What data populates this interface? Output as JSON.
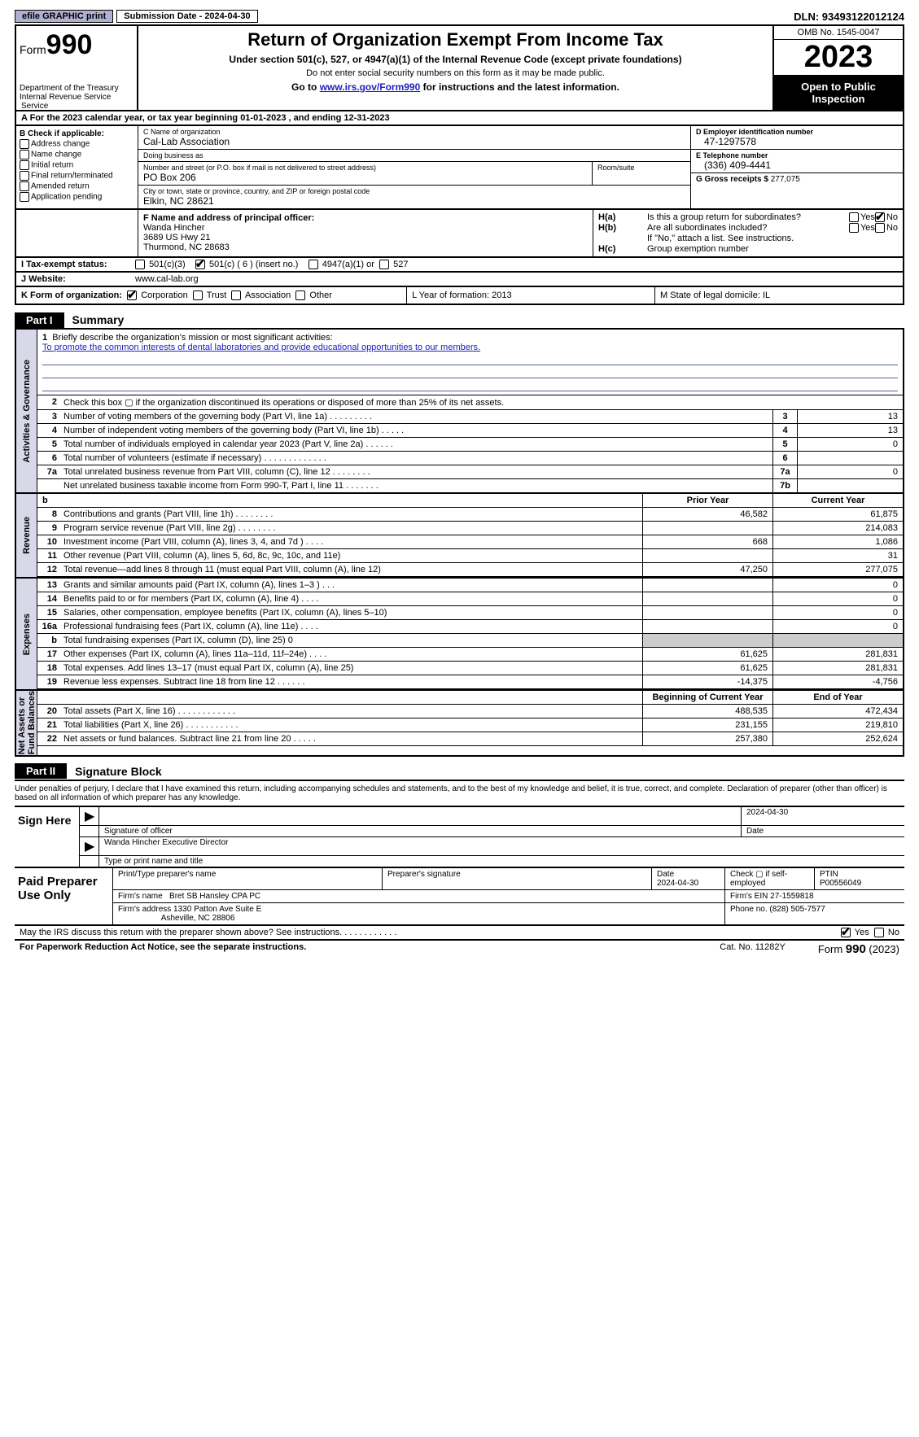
{
  "topbar": {
    "efile": "efile GRAPHIC print",
    "sub_label": "Submission Date - 2024-04-30",
    "dln": "DLN: 93493122012124"
  },
  "header": {
    "form_word": "Form",
    "form_num": "990",
    "title": "Return of Organization Exempt From Income Tax",
    "subtitle": "Under section 501(c), 527, or 4947(a)(1) of the Internal Revenue Code (except private foundations)",
    "note": "Do not enter social security numbers on this form as it may be made public.",
    "goto_pre": "Go to ",
    "goto_link": "www.irs.gov/Form990",
    "goto_post": " for instructions and the latest information.",
    "dept": "Department of the Treasury\nInternal Revenue Service",
    "omb": "OMB No. 1545-0047",
    "year": "2023",
    "open": "Open to Public Inspection"
  },
  "period": {
    "service": "Service",
    "text": "A For the 2023 calendar year, or tax year beginning 01-01-2023   , and ending 12-31-2023"
  },
  "boxB": {
    "hdr": "B Check if applicable:",
    "opts": [
      "Address change",
      "Name change",
      "Initial return",
      "Final return/terminated",
      "Amended return",
      "Application pending"
    ]
  },
  "boxC": {
    "name_lbl": "C Name of organization",
    "name": "Cal-Lab Association",
    "dba_lbl": "Doing business as",
    "dba": "",
    "street_lbl": "Number and street (or P.O. box if mail is not delivered to street address)",
    "street": "PO Box 206",
    "room_lbl": "Room/suite",
    "city_lbl": "City or town, state or province, country, and ZIP or foreign postal code",
    "city": "Elkin, NC  28621"
  },
  "boxD": {
    "lbl": "D Employer identification number",
    "val": "47-1297578"
  },
  "boxE": {
    "lbl": "E Telephone number",
    "val": "(336) 409-4441"
  },
  "boxG": {
    "lbl": "G Gross receipts $",
    "val": "277,075"
  },
  "boxF": {
    "lbl": "F  Name and address of principal officer:",
    "name": "Wanda Hincher",
    "addr1": "3689 US Hwy 21",
    "addr2": "Thurmond, NC  28683"
  },
  "boxH": {
    "a_lbl": "H(a)",
    "a_txt": "Is this a group return for subordinates?",
    "a_no_checked": true,
    "b_lbl": "H(b)",
    "b_txt": "Are all subordinates included?",
    "b_note": "If \"No,\" attach a list. See instructions.",
    "c_lbl": "H(c)",
    "c_txt": "Group exemption number"
  },
  "rowI": {
    "lbl": "I   Tax-exempt status:",
    "o1": "501(c)(3)",
    "o2": "501(c) ( 6 ) (insert no.)",
    "o2_checked": true,
    "o3": "4947(a)(1) or",
    "o4": "527"
  },
  "rowJ": {
    "lbl": "J   Website:",
    "val": "www.cal-lab.org"
  },
  "rowK": {
    "lbl": "K Form of organization:",
    "opts": [
      "Corporation",
      "Trust",
      "Association",
      "Other"
    ],
    "checked": 0,
    "L": "L Year of formation: 2013",
    "M": "M State of legal domicile: IL"
  },
  "part1": {
    "tab": "Part I",
    "title": "Summary"
  },
  "vtabs": {
    "gov": "Activities & Governance",
    "rev": "Revenue",
    "exp": "Expenses",
    "net": "Net Assets or\nFund Balances"
  },
  "mission": {
    "q": "Briefly describe the organization's mission or most significant activities:",
    "a": "To promote the common interests of dental laboratories and provide educational opportunities to our members."
  },
  "gov_lines": [
    {
      "n": "2",
      "d": "Check this box ▢ if the organization discontinued its operations or disposed of more than 25% of its net assets.",
      "box": "",
      "v": ""
    },
    {
      "n": "3",
      "d": "Number of voting members of the governing body (Part VI, line 1a)   .   .   .   .   .   .   .   .   .",
      "box": "3",
      "v": "13"
    },
    {
      "n": "4",
      "d": "Number of independent voting members of the governing body (Part VI, line 1b)   .   .   .   .   .",
      "box": "4",
      "v": "13"
    },
    {
      "n": "5",
      "d": "Total number of individuals employed in calendar year 2023 (Part V, line 2a)   .   .   .   .   .   .",
      "box": "5",
      "v": "0"
    },
    {
      "n": "6",
      "d": "Total number of volunteers (estimate if necessary)   .   .   .   .   .   .   .   .   .   .   .   .   .",
      "box": "6",
      "v": ""
    },
    {
      "n": "7a",
      "d": "Total unrelated business revenue from Part VIII, column (C), line 12   .   .   .   .   .   .   .   .",
      "box": "7a",
      "v": "0"
    },
    {
      "n": "",
      "d": "Net unrelated business taxable income from Form 990-T, Part I, line 11   .   .   .   .   .   .   .",
      "box": "7b",
      "v": ""
    }
  ],
  "col_hdrs": {
    "prior": "Prior Year",
    "curr": "Current Year",
    "begin": "Beginning of Current Year",
    "end": "End of Year"
  },
  "rev_lines": [
    {
      "n": "8",
      "d": "Contributions and grants (Part VIII, line 1h)   .   .   .   .   .   .   .   .",
      "p": "46,582",
      "c": "61,875"
    },
    {
      "n": "9",
      "d": "Program service revenue (Part VIII, line 2g)   .   .   .   .   .   .   .   .",
      "p": "",
      "c": "214,083"
    },
    {
      "n": "10",
      "d": "Investment income (Part VIII, column (A), lines 3, 4, and 7d )   .   .   .   .",
      "p": "668",
      "c": "1,086"
    },
    {
      "n": "11",
      "d": "Other revenue (Part VIII, column (A), lines 5, 6d, 8c, 9c, 10c, and 11e)",
      "p": "",
      "c": "31"
    },
    {
      "n": "12",
      "d": "Total revenue—add lines 8 through 11 (must equal Part VIII, column (A), line 12)",
      "p": "47,250",
      "c": "277,075"
    }
  ],
  "exp_lines": [
    {
      "n": "13",
      "d": "Grants and similar amounts paid (Part IX, column (A), lines 1–3 )   .   .   .",
      "p": "",
      "c": "0"
    },
    {
      "n": "14",
      "d": "Benefits paid to or for members (Part IX, column (A), line 4)   .   .   .   .",
      "p": "",
      "c": "0"
    },
    {
      "n": "15",
      "d": "Salaries, other compensation, employee benefits (Part IX, column (A), lines 5–10)",
      "p": "",
      "c": "0"
    },
    {
      "n": "16a",
      "d": "Professional fundraising fees (Part IX, column (A), line 11e)   .   .   .   .",
      "p": "",
      "c": "0"
    },
    {
      "n": "b",
      "d": "Total fundraising expenses (Part IX, column (D), line 25) 0",
      "p": "grey",
      "c": "grey"
    },
    {
      "n": "17",
      "d": "Other expenses (Part IX, column (A), lines 11a–11d, 11f–24e)   .   .   .   .",
      "p": "61,625",
      "c": "281,831"
    },
    {
      "n": "18",
      "d": "Total expenses. Add lines 13–17 (must equal Part IX, column (A), line 25)",
      "p": "61,625",
      "c": "281,831"
    },
    {
      "n": "19",
      "d": "Revenue less expenses. Subtract line 18 from line 12   .   .   .   .   .   .",
      "p": "-14,375",
      "c": "-4,756"
    }
  ],
  "net_lines": [
    {
      "n": "20",
      "d": "Total assets (Part X, line 16)   .   .   .   .   .   .   .   .   .   .   .   .",
      "p": "488,535",
      "c": "472,434"
    },
    {
      "n": "21",
      "d": "Total liabilities (Part X, line 26)   .   .   .   .   .   .   .   .   .   .   .",
      "p": "231,155",
      "c": "219,810"
    },
    {
      "n": "22",
      "d": "Net assets or fund balances. Subtract line 21 from line 20   .   .   .   .   .",
      "p": "257,380",
      "c": "252,624"
    }
  ],
  "part2": {
    "tab": "Part II",
    "title": "Signature Block"
  },
  "sig": {
    "decl": "Under penalties of perjury, I declare that I have examined this return, including accompanying schedules and statements, and to the best of my knowledge and belief, it is true, correct, and complete. Declaration of preparer (other than officer) is based on all information of which preparer has any knowledge.",
    "here": "Sign Here",
    "sig_lbl": "Signature of officer",
    "date_lbl": "Date",
    "date": "2024-04-30",
    "name": "Wanda Hincher Executive Director",
    "type_lbl": "Type or print name and title"
  },
  "prep": {
    "hdr": "Paid Preparer Use Only",
    "c1": "Print/Type preparer's name",
    "c2": "Preparer's signature",
    "c3": "Date",
    "c3v": "2024-04-30",
    "c4": "Check ▢ if self-employed",
    "c5": "PTIN",
    "c5v": "P00556049",
    "firm_lbl": "Firm's name",
    "firm": "Bret SB Hansley CPA PC",
    "ein_lbl": "Firm's EIN",
    "ein": "27-1559818",
    "addr_lbl": "Firm's address",
    "addr1": "1330 Patton Ave Suite E",
    "addr2": "Asheville, NC  28806",
    "phone_lbl": "Phone no.",
    "phone": "(828) 505-7577"
  },
  "discuss": {
    "q": "May the IRS discuss this return with the preparer shown above? See instructions.   .   .   .   .   .   .   .   .   .   .   .",
    "yes_checked": true
  },
  "footer": {
    "l": "For Paperwork Reduction Act Notice, see the separate instructions.",
    "m": "Cat. No. 11282Y",
    "r_pre": "Form ",
    "r_num": "990",
    "r_post": " (2023)"
  }
}
